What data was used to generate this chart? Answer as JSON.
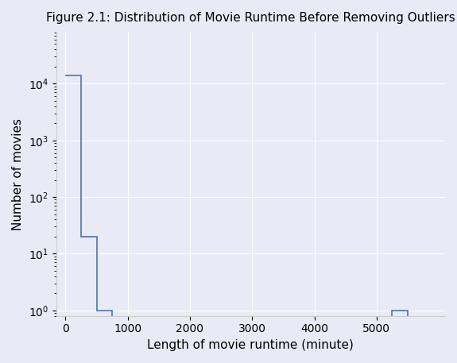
{
  "title": "Figure 2.1: Distribution of Movie Runtime Before Removing Outliers",
  "xlabel": "Length of movie runtime (minute)",
  "ylabel": "Number of movies",
  "background_color": "#e8eaf6",
  "line_color": "#4c72b0",
  "bin_edges": [
    0,
    250,
    500,
    750,
    1000,
    1250,
    1500,
    1750,
    2000,
    2250,
    2500,
    2750,
    3000,
    3250,
    3500,
    3750,
    4000,
    4250,
    4500,
    4750,
    5000,
    5250,
    5500,
    5750,
    6000
  ],
  "bin_counts": [
    14000,
    20,
    1,
    0,
    0,
    0,
    0,
    0,
    0,
    0,
    0,
    0,
    0,
    0,
    0,
    0,
    0,
    0,
    0,
    0,
    0,
    1,
    0,
    0
  ],
  "xlim": [
    -150,
    6100
  ],
  "ylim_log": [
    0.8,
    80000
  ],
  "xticks": [
    0,
    1000,
    2000,
    3000,
    4000,
    5000
  ],
  "grid_color": "#ffffff",
  "title_fontsize": 11,
  "axis_fontsize": 11
}
